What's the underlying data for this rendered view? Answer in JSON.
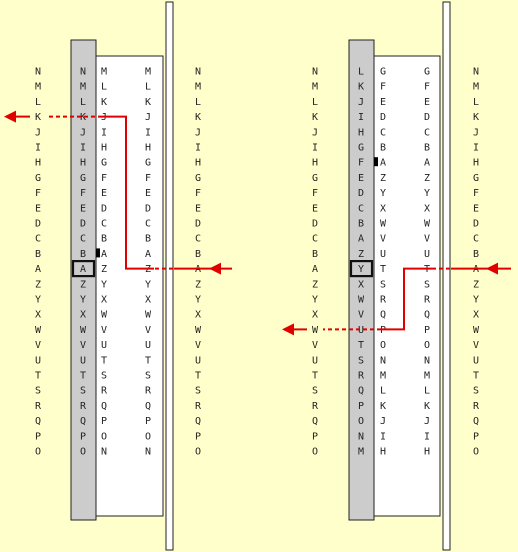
{
  "panels": [
    {
      "outer_left": [
        "N",
        "M",
        "L",
        "K",
        "J",
        "I",
        "H",
        "G",
        "F",
        "E",
        "D",
        "C",
        "B",
        "A",
        "Z",
        "Y",
        "X",
        "W",
        "V",
        "U",
        "T",
        "S",
        "R",
        "Q",
        "P",
        "O"
      ],
      "ring": [
        "N",
        "M",
        "L",
        "K",
        "J",
        "I",
        "H",
        "G",
        "F",
        "E",
        "D",
        "C",
        "B",
        "A",
        "Z",
        "Y",
        "X",
        "W",
        "V",
        "U",
        "T",
        "S",
        "R",
        "Q",
        "P",
        "O"
      ],
      "wiring_left": [
        "M",
        "L",
        "K",
        "J",
        "I",
        "H",
        "G",
        "F",
        "E",
        "D",
        "C",
        "B",
        "A",
        "Z",
        "Y",
        "X",
        "W",
        "V",
        "U",
        "T",
        "S",
        "R",
        "Q",
        "P",
        "O",
        "N"
      ],
      "wiring_right": [
        "M",
        "L",
        "K",
        "J",
        "I",
        "H",
        "G",
        "F",
        "E",
        "D",
        "C",
        "B",
        "A",
        "Z",
        "Y",
        "X",
        "W",
        "V",
        "U",
        "T",
        "S",
        "R",
        "Q",
        "P",
        "O",
        "N"
      ],
      "outer_right": [
        "N",
        "M",
        "L",
        "K",
        "J",
        "I",
        "H",
        "G",
        "F",
        "E",
        "D",
        "C",
        "B",
        "A",
        "Z",
        "Y",
        "X",
        "W",
        "V",
        "U",
        "T",
        "S",
        "R",
        "Q",
        "P",
        "O"
      ],
      "highlight_row": 13,
      "notch_row": 12,
      "path": {
        "in_row": 13,
        "out_row": 3
      }
    },
    {
      "outer_left": [
        "N",
        "M",
        "L",
        "K",
        "J",
        "I",
        "H",
        "G",
        "F",
        "E",
        "D",
        "C",
        "B",
        "A",
        "Z",
        "Y",
        "X",
        "W",
        "V",
        "U",
        "T",
        "S",
        "R",
        "Q",
        "P",
        "O"
      ],
      "ring": [
        "L",
        "K",
        "J",
        "I",
        "H",
        "G",
        "F",
        "E",
        "D",
        "C",
        "B",
        "A",
        "Z",
        "Y",
        "X",
        "W",
        "V",
        "U",
        "T",
        "S",
        "R",
        "Q",
        "P",
        "O",
        "N",
        "M"
      ],
      "wiring_left": [
        "G",
        "F",
        "E",
        "D",
        "C",
        "B",
        "A",
        "Z",
        "Y",
        "X",
        "W",
        "V",
        "U",
        "T",
        "S",
        "R",
        "Q",
        "P",
        "O",
        "N",
        "M",
        "L",
        "K",
        "J",
        "I",
        "H"
      ],
      "wiring_right": [
        "G",
        "F",
        "E",
        "D",
        "C",
        "B",
        "A",
        "Z",
        "Y",
        "X",
        "W",
        "V",
        "U",
        "T",
        "S",
        "R",
        "Q",
        "P",
        "O",
        "N",
        "M",
        "L",
        "K",
        "J",
        "I",
        "H"
      ],
      "outer_right": [
        "N",
        "M",
        "L",
        "K",
        "J",
        "I",
        "H",
        "G",
        "F",
        "E",
        "D",
        "C",
        "B",
        "A",
        "Z",
        "Y",
        "X",
        "W",
        "V",
        "U",
        "T",
        "S",
        "R",
        "Q",
        "P",
        "O"
      ],
      "highlight_row": 13,
      "notch_row": 6,
      "path": {
        "in_row": 13,
        "out_row": 17
      }
    }
  ],
  "colors": {
    "background": "#ffffcc",
    "ring_fill": "#cccccc",
    "rotor_fill": "#ffffff",
    "arrow": "#e00000",
    "letters": "#222222"
  }
}
